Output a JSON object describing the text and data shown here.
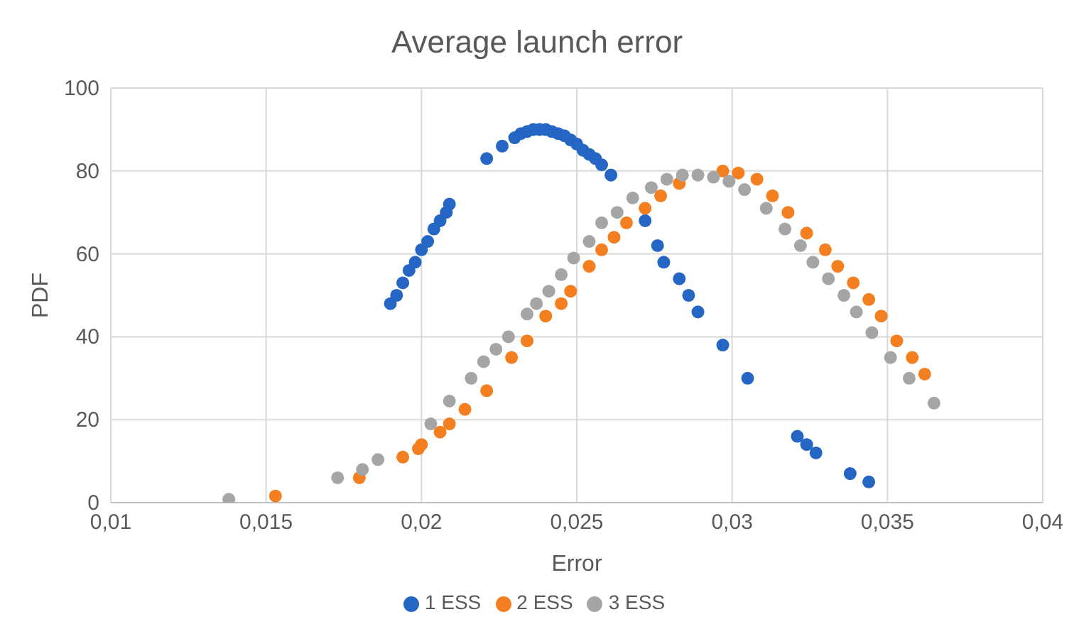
{
  "chart_data": {
    "type": "scatter",
    "title": "Average launch error",
    "xlabel": "Error",
    "ylabel": "PDF",
    "xlim": [
      0.01,
      0.04
    ],
    "xticks": [
      {
        "value": 0.01,
        "label": "0,01"
      },
      {
        "value": 0.015,
        "label": "0,015"
      },
      {
        "value": 0.02,
        "label": "0,02"
      },
      {
        "value": 0.025,
        "label": "0,025"
      },
      {
        "value": 0.03,
        "label": "0,03"
      },
      {
        "value": 0.035,
        "label": "0,035"
      },
      {
        "value": 0.04,
        "label": "0,04"
      }
    ],
    "ylim": [
      0,
      100
    ],
    "yticks": [
      0,
      20,
      40,
      60,
      80,
      100
    ],
    "grid": true,
    "legend": "bottom",
    "marker": "circle",
    "series": [
      {
        "name": "1 ESS",
        "color": "#2566c4",
        "x": [
          0.019,
          0.0192,
          0.0194,
          0.0196,
          0.0198,
          0.02,
          0.0202,
          0.0204,
          0.0206,
          0.0208,
          0.0209,
          0.0221,
          0.0226,
          0.023,
          0.0232,
          0.0234,
          0.0236,
          0.0238,
          0.024,
          0.0242,
          0.0244,
          0.0246,
          0.0248,
          0.025,
          0.0252,
          0.0254,
          0.0256,
          0.0258,
          0.0261,
          0.0272,
          0.0276,
          0.0278,
          0.0283,
          0.0286,
          0.0289,
          0.0297,
          0.0305,
          0.0321,
          0.0324,
          0.0327,
          0.0338,
          0.0344
        ],
        "values": [
          48,
          50,
          53,
          56,
          58,
          61,
          63,
          66,
          68,
          70,
          72,
          83,
          86,
          88,
          89,
          89.5,
          90,
          90,
          90,
          89.5,
          89,
          88.5,
          87.5,
          86.5,
          85,
          84,
          83,
          81.5,
          79,
          68,
          62,
          58,
          54,
          50,
          46,
          38,
          30,
          16,
          14,
          12,
          7,
          5
        ]
      },
      {
        "name": "2 ESS",
        "color": "#f47f20",
        "x": [
          0.0153,
          0.018,
          0.0194,
          0.0199,
          0.02,
          0.0206,
          0.0209,
          0.0214,
          0.0221,
          0.0229,
          0.0234,
          0.024,
          0.0245,
          0.0248,
          0.0254,
          0.0258,
          0.0262,
          0.0266,
          0.0272,
          0.0277,
          0.0283,
          0.0289,
          0.0295,
          0.0297,
          0.0302,
          0.0308,
          0.0313,
          0.0318,
          0.0324,
          0.033,
          0.0334,
          0.0339,
          0.0344,
          0.0348,
          0.0353,
          0.0358,
          0.0362
        ],
        "values": [
          1.6,
          6,
          11,
          13,
          14,
          17,
          19,
          22.5,
          27,
          35,
          39,
          45,
          48,
          51,
          57,
          61,
          64,
          67.5,
          71,
          74,
          77,
          null,
          null,
          80,
          79.5,
          78,
          74,
          70,
          65,
          61,
          57,
          53,
          49,
          45,
          39,
          35,
          31
        ]
      },
      {
        "name": "3 ESS",
        "color": "#a5a5a5",
        "x": [
          0.0138,
          0.0173,
          0.0181,
          0.0186,
          0.0203,
          0.0209,
          0.0216,
          0.022,
          0.0224,
          0.0228,
          0.0234,
          0.0237,
          0.0241,
          0.0245,
          0.0249,
          0.0254,
          0.0258,
          0.0263,
          0.0268,
          0.0274,
          0.0279,
          0.0284,
          0.0289,
          0.0294,
          0.0299,
          0.0304,
          0.0311,
          0.0317,
          0.0322,
          0.0326,
          0.0331,
          0.0336,
          0.034,
          0.0345,
          0.0351,
          0.0357,
          0.0365
        ],
        "values": [
          0.8,
          6,
          8,
          10.4,
          19,
          24.5,
          30,
          34,
          37,
          40,
          45.5,
          48,
          51,
          55,
          59,
          63,
          67.5,
          70,
          73.5,
          76,
          78,
          79,
          79,
          78.5,
          77.5,
          75.5,
          71,
          66,
          62,
          58,
          54,
          50,
          46,
          41,
          35,
          30,
          24
        ]
      }
    ]
  }
}
